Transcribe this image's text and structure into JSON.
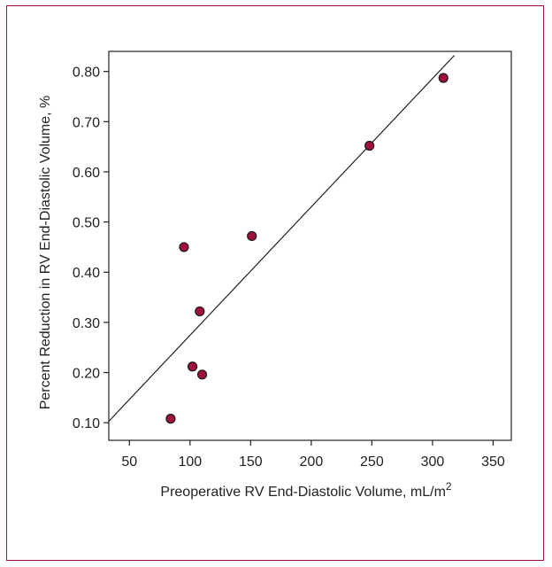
{
  "colors": {
    "frame_border": "#a0103a",
    "point_fill": "#a0103a",
    "axis": "#222222",
    "fit_line": "#222222"
  },
  "chart_data": {
    "type": "scatter",
    "title": "",
    "xlabel": "Preoperative RV End-Diastolic Volume, mL/m",
    "xlabel_superscript": "2",
    "ylabel": "Percent Reduction in RV End-Diastolic Volume, %",
    "xlim": [
      33,
      365
    ],
    "ylim": [
      0.065,
      0.84
    ],
    "x_ticks": [
      50,
      100,
      150,
      200,
      250,
      300,
      350
    ],
    "x_tick_labels": [
      "50",
      "100",
      "150",
      "200",
      "250",
      "300",
      "350"
    ],
    "y_ticks": [
      0.1,
      0.2,
      0.3,
      0.4,
      0.5,
      0.6,
      0.7,
      0.8
    ],
    "y_tick_labels": [
      "0.10",
      "0.20",
      "0.30",
      "0.40",
      "0.50",
      "0.60",
      "0.70",
      "0.80"
    ],
    "grid": false,
    "legend": "none",
    "points": [
      {
        "x": 84,
        "y": 0.108
      },
      {
        "x": 95,
        "y": 0.45
      },
      {
        "x": 102,
        "y": 0.212
      },
      {
        "x": 108,
        "y": 0.322
      },
      {
        "x": 110,
        "y": 0.196
      },
      {
        "x": 151,
        "y": 0.472
      },
      {
        "x": 248,
        "y": 0.652
      },
      {
        "x": 309,
        "y": 0.787
      }
    ],
    "fit_line": {
      "x": [
        33,
        318
      ],
      "y": [
        0.103,
        0.832
      ]
    }
  }
}
